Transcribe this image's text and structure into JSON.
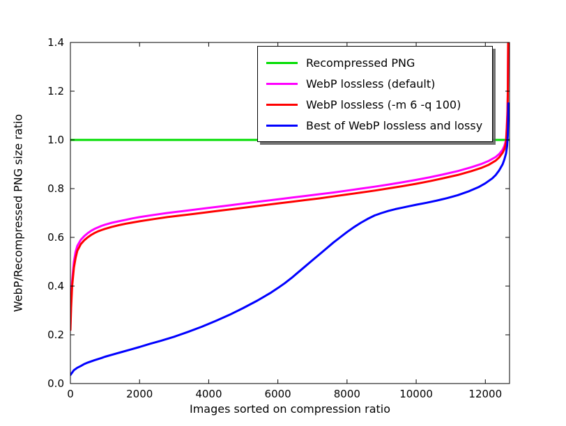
{
  "figure": {
    "background": "#ffffff",
    "axis_color": "#000000"
  },
  "chart_data": {
    "type": "line",
    "title": "",
    "xlabel": "Images sorted on compression ratio",
    "ylabel": "WebP/Recompressed PNG size ratio",
    "xlim": [
      0,
      12700
    ],
    "ylim": [
      0.0,
      1.4
    ],
    "xticks": [
      0,
      2000,
      4000,
      6000,
      8000,
      10000,
      12000
    ],
    "xtick_labels": [
      "0",
      "2000",
      "4000",
      "6000",
      "8000",
      "10000",
      "12000"
    ],
    "yticks": [
      0.0,
      0.2,
      0.4,
      0.6,
      0.8,
      1.0,
      1.2,
      1.4
    ],
    "ytick_labels": [
      "0.0",
      "0.2",
      "0.4",
      "0.6",
      "0.8",
      "1.0",
      "1.2",
      "1.4"
    ],
    "grid": false,
    "legend": {
      "location": "upper center",
      "frame": true,
      "shadow": true
    },
    "series": [
      {
        "name": "Recompressed PNG",
        "color": "#00dd00",
        "width": 3,
        "points": [
          [
            0,
            1.0
          ],
          [
            12700,
            1.0
          ]
        ]
      },
      {
        "name": "WebP lossless (default)",
        "color": "#ff00ff",
        "width": 3,
        "points": [
          [
            0,
            0.24
          ],
          [
            20,
            0.33
          ],
          [
            50,
            0.42
          ],
          [
            100,
            0.5
          ],
          [
            150,
            0.54
          ],
          [
            200,
            0.565
          ],
          [
            300,
            0.59
          ],
          [
            400,
            0.605
          ],
          [
            500,
            0.617
          ],
          [
            600,
            0.627
          ],
          [
            700,
            0.635
          ],
          [
            800,
            0.641
          ],
          [
            900,
            0.647
          ],
          [
            1000,
            0.652
          ],
          [
            1200,
            0.66
          ],
          [
            1400,
            0.666
          ],
          [
            1600,
            0.672
          ],
          [
            1800,
            0.678
          ],
          [
            2000,
            0.683
          ],
          [
            2400,
            0.692
          ],
          [
            2800,
            0.7
          ],
          [
            3200,
            0.707
          ],
          [
            3600,
            0.714
          ],
          [
            4000,
            0.721
          ],
          [
            4400,
            0.728
          ],
          [
            4800,
            0.735
          ],
          [
            5200,
            0.742
          ],
          [
            5600,
            0.749
          ],
          [
            6000,
            0.756
          ],
          [
            6400,
            0.763
          ],
          [
            6800,
            0.77
          ],
          [
            7200,
            0.777
          ],
          [
            7600,
            0.784
          ],
          [
            8000,
            0.792
          ],
          [
            8400,
            0.8
          ],
          [
            8800,
            0.808
          ],
          [
            9200,
            0.817
          ],
          [
            9600,
            0.826
          ],
          [
            10000,
            0.836
          ],
          [
            10400,
            0.847
          ],
          [
            10800,
            0.859
          ],
          [
            11200,
            0.872
          ],
          [
            11600,
            0.888
          ],
          [
            11900,
            0.902
          ],
          [
            12100,
            0.914
          ],
          [
            12300,
            0.93
          ],
          [
            12400,
            0.942
          ],
          [
            12500,
            0.96
          ],
          [
            12550,
            0.975
          ],
          [
            12600,
            1.0
          ],
          [
            12620,
            1.05
          ],
          [
            12640,
            1.12
          ],
          [
            12650,
            1.2
          ],
          [
            12660,
            1.4
          ]
        ]
      },
      {
        "name": "WebP lossless (-m 6 -q 100)",
        "color": "#ff0000",
        "width": 3,
        "points": [
          [
            0,
            0.22
          ],
          [
            20,
            0.31
          ],
          [
            50,
            0.4
          ],
          [
            100,
            0.475
          ],
          [
            150,
            0.515
          ],
          [
            200,
            0.545
          ],
          [
            300,
            0.572
          ],
          [
            400,
            0.588
          ],
          [
            500,
            0.6
          ],
          [
            600,
            0.61
          ],
          [
            700,
            0.618
          ],
          [
            800,
            0.625
          ],
          [
            900,
            0.63
          ],
          [
            1000,
            0.635
          ],
          [
            1200,
            0.643
          ],
          [
            1400,
            0.65
          ],
          [
            1600,
            0.656
          ],
          [
            1800,
            0.661
          ],
          [
            2000,
            0.666
          ],
          [
            2400,
            0.675
          ],
          [
            2800,
            0.683
          ],
          [
            3200,
            0.69
          ],
          [
            3600,
            0.697
          ],
          [
            4000,
            0.704
          ],
          [
            4400,
            0.711
          ],
          [
            4800,
            0.718
          ],
          [
            5200,
            0.725
          ],
          [
            5600,
            0.732
          ],
          [
            6000,
            0.739
          ],
          [
            6400,
            0.746
          ],
          [
            6800,
            0.753
          ],
          [
            7200,
            0.76
          ],
          [
            7600,
            0.768
          ],
          [
            8000,
            0.776
          ],
          [
            8400,
            0.784
          ],
          [
            8800,
            0.792
          ],
          [
            9200,
            0.801
          ],
          [
            9600,
            0.81
          ],
          [
            10000,
            0.82
          ],
          [
            10400,
            0.831
          ],
          [
            10800,
            0.843
          ],
          [
            11200,
            0.856
          ],
          [
            11600,
            0.872
          ],
          [
            11900,
            0.886
          ],
          [
            12100,
            0.898
          ],
          [
            12300,
            0.915
          ],
          [
            12400,
            0.928
          ],
          [
            12500,
            0.947
          ],
          [
            12550,
            0.962
          ],
          [
            12600,
            0.99
          ],
          [
            12620,
            1.04
          ],
          [
            12640,
            1.1
          ],
          [
            12650,
            1.18
          ],
          [
            12660,
            1.4
          ]
        ]
      },
      {
        "name": "Best of WebP lossless and lossy",
        "color": "#0000ff",
        "width": 3,
        "points": [
          [
            0,
            0.035
          ],
          [
            100,
            0.055
          ],
          [
            200,
            0.065
          ],
          [
            300,
            0.072
          ],
          [
            400,
            0.08
          ],
          [
            500,
            0.086
          ],
          [
            700,
            0.096
          ],
          [
            900,
            0.105
          ],
          [
            1000,
            0.11
          ],
          [
            1200,
            0.118
          ],
          [
            1500,
            0.13
          ],
          [
            1800,
            0.142
          ],
          [
            2000,
            0.15
          ],
          [
            2300,
            0.163
          ],
          [
            2600,
            0.175
          ],
          [
            3000,
            0.192
          ],
          [
            3400,
            0.212
          ],
          [
            3800,
            0.233
          ],
          [
            4200,
            0.257
          ],
          [
            4600,
            0.282
          ],
          [
            5000,
            0.31
          ],
          [
            5400,
            0.34
          ],
          [
            5800,
            0.373
          ],
          [
            6000,
            0.392
          ],
          [
            6200,
            0.412
          ],
          [
            6400,
            0.434
          ],
          [
            6600,
            0.458
          ],
          [
            6800,
            0.482
          ],
          [
            7000,
            0.506
          ],
          [
            7200,
            0.53
          ],
          [
            7400,
            0.554
          ],
          [
            7600,
            0.578
          ],
          [
            7800,
            0.6
          ],
          [
            8000,
            0.622
          ],
          [
            8200,
            0.642
          ],
          [
            8400,
            0.66
          ],
          [
            8600,
            0.676
          ],
          [
            8800,
            0.69
          ],
          [
            9000,
            0.7
          ],
          [
            9200,
            0.709
          ],
          [
            9400,
            0.716
          ],
          [
            9600,
            0.722
          ],
          [
            9800,
            0.728
          ],
          [
            10000,
            0.734
          ],
          [
            10300,
            0.742
          ],
          [
            10600,
            0.751
          ],
          [
            10900,
            0.761
          ],
          [
            11200,
            0.773
          ],
          [
            11500,
            0.788
          ],
          [
            11800,
            0.806
          ],
          [
            12000,
            0.822
          ],
          [
            12200,
            0.842
          ],
          [
            12300,
            0.856
          ],
          [
            12400,
            0.875
          ],
          [
            12500,
            0.9
          ],
          [
            12550,
            0.92
          ],
          [
            12600,
            0.945
          ],
          [
            12630,
            0.975
          ],
          [
            12650,
            1.02
          ],
          [
            12660,
            1.08
          ],
          [
            12665,
            1.15
          ]
        ]
      }
    ]
  }
}
